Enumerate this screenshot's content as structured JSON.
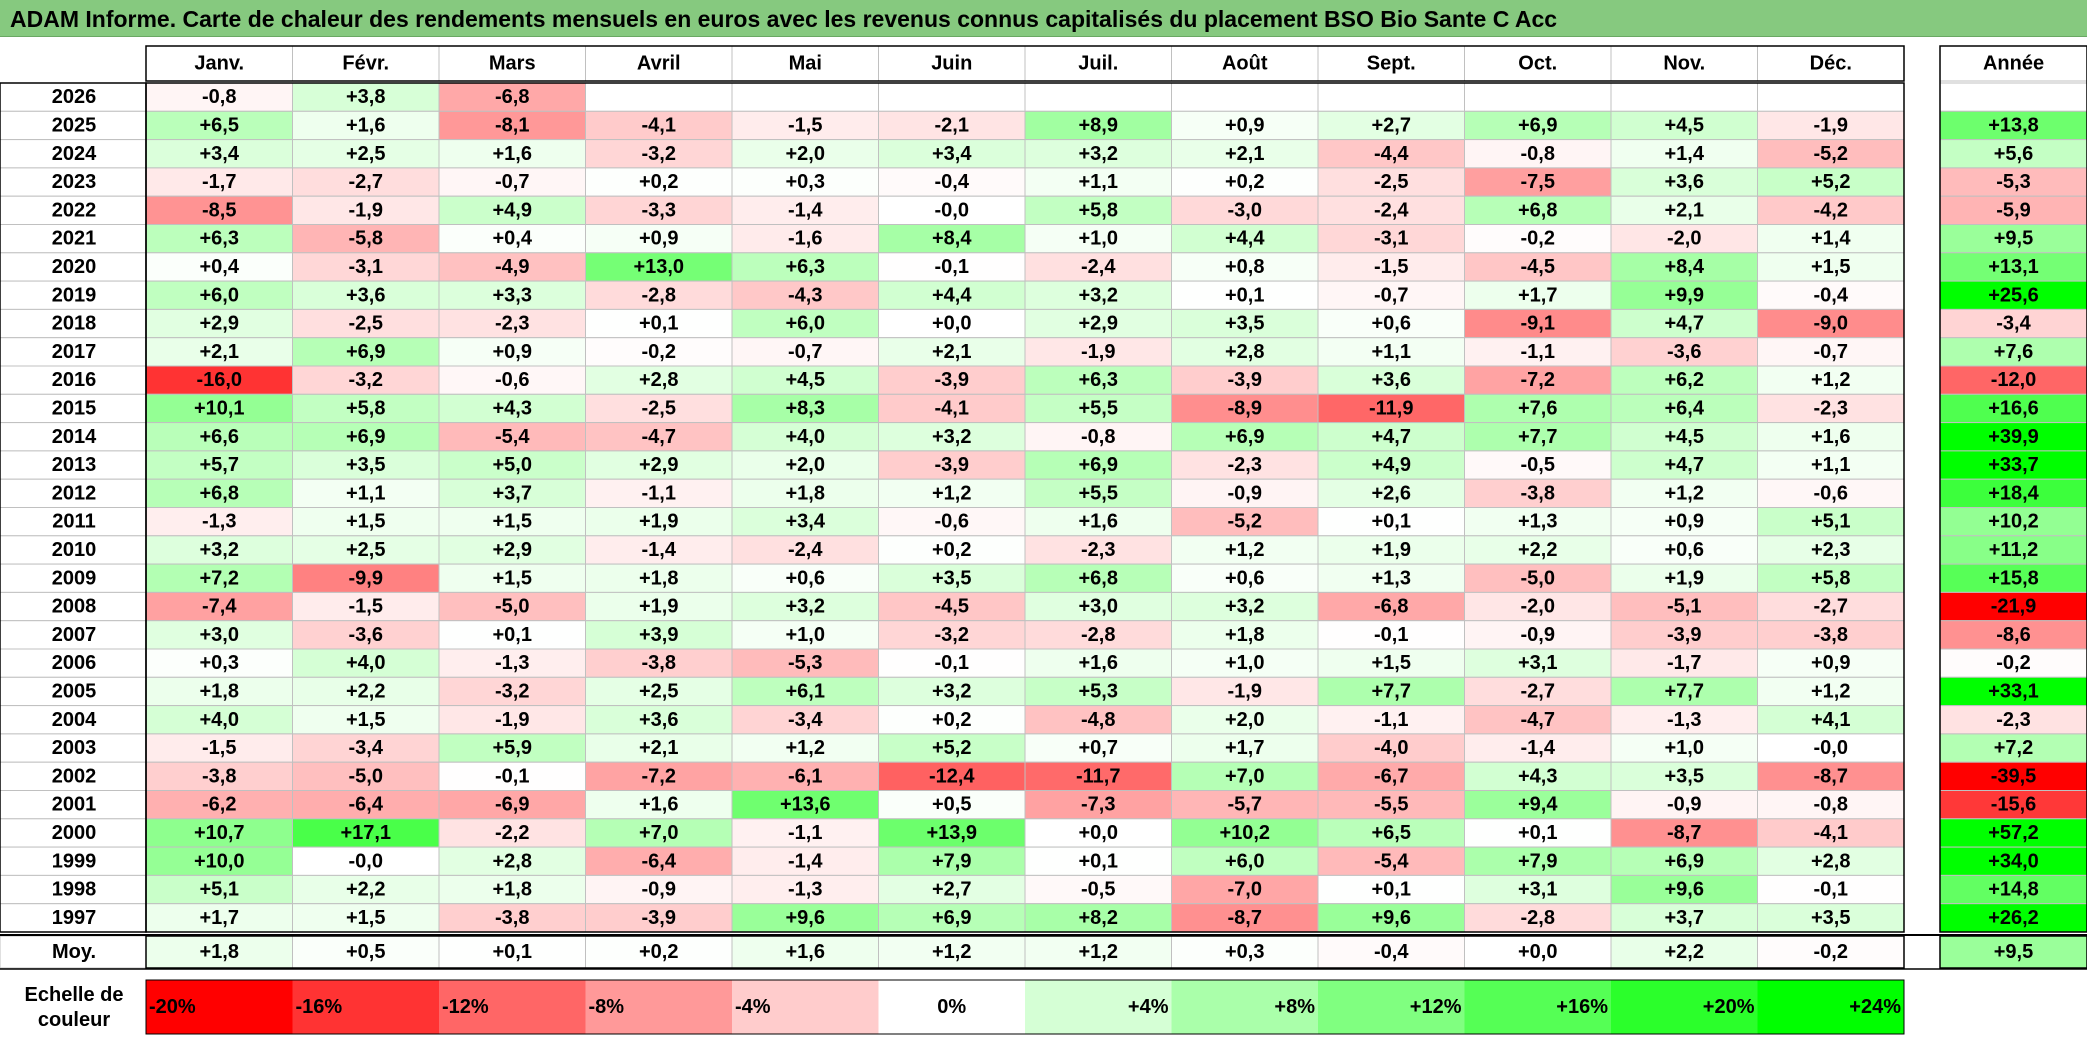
{
  "title": "ADAM Informe. Carte de chaleur des rendements mensuels en euros avec les revenus connus capitalisés du placement BSO Bio Sante C Acc",
  "chart_data": {
    "type": "heatmap",
    "title": "ADAM Informe. Carte de chaleur des rendements mensuels en euros avec les revenus connus capitalisés du placement BSO Bio Sante C Acc",
    "months": [
      "Janv.",
      "Févr.",
      "Mars",
      "Avril",
      "Mai",
      "Juin",
      "Juil.",
      "Août",
      "Sept.",
      "Oct.",
      "Nov.",
      "Déc."
    ],
    "year_header": "Année",
    "rows": [
      {
        "year": "2026",
        "values": [
          "-0,8",
          "+3,8",
          "-6,8",
          "",
          "",
          "",
          "",
          "",
          "",
          "",
          "",
          ""
        ],
        "annual": ""
      },
      {
        "year": "2025",
        "values": [
          "+6,5",
          "+1,6",
          "-8,1",
          "-4,1",
          "-1,5",
          "-2,1",
          "+8,9",
          "+0,9",
          "+2,7",
          "+6,9",
          "+4,5",
          "-1,9"
        ],
        "annual": "+13,8"
      },
      {
        "year": "2024",
        "values": [
          "+3,4",
          "+2,5",
          "+1,6",
          "-3,2",
          "+2,0",
          "+3,4",
          "+3,2",
          "+2,1",
          "-4,4",
          "-0,8",
          "+1,4",
          "-5,2"
        ],
        "annual": "+5,6"
      },
      {
        "year": "2023",
        "values": [
          "-1,7",
          "-2,7",
          "-0,7",
          "+0,2",
          "+0,3",
          "-0,4",
          "+1,1",
          "+0,2",
          "-2,5",
          "-7,5",
          "+3,6",
          "+5,2"
        ],
        "annual": "-5,3"
      },
      {
        "year": "2022",
        "values": [
          "-8,5",
          "-1,9",
          "+4,9",
          "-3,3",
          "-1,4",
          "-0,0",
          "+5,8",
          "-3,0",
          "-2,4",
          "+6,8",
          "+2,1",
          "-4,2"
        ],
        "annual": "-5,9"
      },
      {
        "year": "2021",
        "values": [
          "+6,3",
          "-5,8",
          "+0,4",
          "+0,9",
          "-1,6",
          "+8,4",
          "+1,0",
          "+4,4",
          "-3,1",
          "-0,2",
          "-2,0",
          "+1,4"
        ],
        "annual": "+9,5"
      },
      {
        "year": "2020",
        "values": [
          "+0,4",
          "-3,1",
          "-4,9",
          "+13,0",
          "+6,3",
          "-0,1",
          "-2,4",
          "+0,8",
          "-1,5",
          "-4,5",
          "+8,4",
          "+1,5"
        ],
        "annual": "+13,1"
      },
      {
        "year": "2019",
        "values": [
          "+6,0",
          "+3,6",
          "+3,3",
          "-2,8",
          "-4,3",
          "+4,4",
          "+3,2",
          "+0,1",
          "-0,7",
          "+1,7",
          "+9,9",
          "-0,4"
        ],
        "annual": "+25,6"
      },
      {
        "year": "2018",
        "values": [
          "+2,9",
          "-2,5",
          "-2,3",
          "+0,1",
          "+6,0",
          "+0,0",
          "+2,9",
          "+3,5",
          "+0,6",
          "-9,1",
          "+4,7",
          "-9,0"
        ],
        "annual": "-3,4"
      },
      {
        "year": "2017",
        "values": [
          "+2,1",
          "+6,9",
          "+0,9",
          "-0,2",
          "-0,7",
          "+2,1",
          "-1,9",
          "+2,8",
          "+1,1",
          "-1,1",
          "-3,6",
          "-0,7"
        ],
        "annual": "+7,6"
      },
      {
        "year": "2016",
        "values": [
          "-16,0",
          "-3,2",
          "-0,6",
          "+2,8",
          "+4,5",
          "-3,9",
          "+6,3",
          "-3,9",
          "+3,6",
          "-7,2",
          "+6,2",
          "+1,2"
        ],
        "annual": "-12,0"
      },
      {
        "year": "2015",
        "values": [
          "+10,1",
          "+5,8",
          "+4,3",
          "-2,5",
          "+8,3",
          "-4,1",
          "+5,5",
          "-8,9",
          "-11,9",
          "+7,6",
          "+6,4",
          "-2,3"
        ],
        "annual": "+16,6"
      },
      {
        "year": "2014",
        "values": [
          "+6,6",
          "+6,9",
          "-5,4",
          "-4,7",
          "+4,0",
          "+3,2",
          "-0,8",
          "+6,9",
          "+4,7",
          "+7,7",
          "+4,5",
          "+1,6"
        ],
        "annual": "+39,9"
      },
      {
        "year": "2013",
        "values": [
          "+5,7",
          "+3,5",
          "+5,0",
          "+2,9",
          "+2,0",
          "-3,9",
          "+6,9",
          "-2,3",
          "+4,9",
          "-0,5",
          "+4,7",
          "+1,1"
        ],
        "annual": "+33,7"
      },
      {
        "year": "2012",
        "values": [
          "+6,8",
          "+1,1",
          "+3,7",
          "-1,1",
          "+1,8",
          "+1,2",
          "+5,5",
          "-0,9",
          "+2,6",
          "-3,8",
          "+1,2",
          "-0,6"
        ],
        "annual": "+18,4"
      },
      {
        "year": "2011",
        "values": [
          "-1,3",
          "+1,5",
          "+1,5",
          "+1,9",
          "+3,4",
          "-0,6",
          "+1,6",
          "-5,2",
          "+0,1",
          "+1,3",
          "+0,9",
          "+5,1"
        ],
        "annual": "+10,2"
      },
      {
        "year": "2010",
        "values": [
          "+3,2",
          "+2,5",
          "+2,9",
          "-1,4",
          "-2,4",
          "+0,2",
          "-2,3",
          "+1,2",
          "+1,9",
          "+2,2",
          "+0,6",
          "+2,3"
        ],
        "annual": "+11,2"
      },
      {
        "year": "2009",
        "values": [
          "+7,2",
          "-9,9",
          "+1,5",
          "+1,8",
          "+0,6",
          "+3,5",
          "+6,8",
          "+0,6",
          "+1,3",
          "-5,0",
          "+1,9",
          "+5,8"
        ],
        "annual": "+15,8"
      },
      {
        "year": "2008",
        "values": [
          "-7,4",
          "-1,5",
          "-5,0",
          "+1,9",
          "+3,2",
          "-4,5",
          "+3,0",
          "+3,2",
          "-6,8",
          "-2,0",
          "-5,1",
          "-2,7"
        ],
        "annual": "-21,9"
      },
      {
        "year": "2007",
        "values": [
          "+3,0",
          "-3,6",
          "+0,1",
          "+3,9",
          "+1,0",
          "-3,2",
          "-2,8",
          "+1,8",
          "-0,1",
          "-0,9",
          "-3,9",
          "-3,8"
        ],
        "annual": "-8,6"
      },
      {
        "year": "2006",
        "values": [
          "+0,3",
          "+4,0",
          "-1,3",
          "-3,8",
          "-5,3",
          "-0,1",
          "+1,6",
          "+1,0",
          "+1,5",
          "+3,1",
          "-1,7",
          "+0,9"
        ],
        "annual": "-0,2"
      },
      {
        "year": "2005",
        "values": [
          "+1,8",
          "+2,2",
          "-3,2",
          "+2,5",
          "+6,1",
          "+3,2",
          "+5,3",
          "-1,9",
          "+7,7",
          "-2,7",
          "+7,7",
          "+1,2"
        ],
        "annual": "+33,1"
      },
      {
        "year": "2004",
        "values": [
          "+4,0",
          "+1,5",
          "-1,9",
          "+3,6",
          "-3,4",
          "+0,2",
          "-4,8",
          "+2,0",
          "-1,1",
          "-4,7",
          "-1,3",
          "+4,1"
        ],
        "annual": "-2,3"
      },
      {
        "year": "2003",
        "values": [
          "-1,5",
          "-3,4",
          "+5,9",
          "+2,1",
          "+1,2",
          "+5,2",
          "+0,7",
          "+1,7",
          "-4,0",
          "-1,4",
          "+1,0",
          "-0,0"
        ],
        "annual": "+7,2"
      },
      {
        "year": "2002",
        "values": [
          "-3,8",
          "-5,0",
          "-0,1",
          "-7,2",
          "-6,1",
          "-12,4",
          "-11,7",
          "+7,0",
          "-6,7",
          "+4,3",
          "+3,5",
          "-8,7"
        ],
        "annual": "-39,5"
      },
      {
        "year": "2001",
        "values": [
          "-6,2",
          "-6,4",
          "-6,9",
          "+1,6",
          "+13,6",
          "+0,5",
          "-7,3",
          "-5,7",
          "-5,5",
          "+9,4",
          "-0,9",
          "-0,8"
        ],
        "annual": "-15,6"
      },
      {
        "year": "2000",
        "values": [
          "+10,7",
          "+17,1",
          "-2,2",
          "+7,0",
          "-1,1",
          "+13,9",
          "+0,0",
          "+10,2",
          "+6,5",
          "+0,1",
          "-8,7",
          "-4,1"
        ],
        "annual": "+57,2"
      },
      {
        "year": "1999",
        "values": [
          "+10,0",
          "-0,0",
          "+2,8",
          "-6,4",
          "-1,4",
          "+7,9",
          "+0,1",
          "+6,0",
          "-5,4",
          "+7,9",
          "+6,9",
          "+2,8"
        ],
        "annual": "+34,0"
      },
      {
        "year": "1998",
        "values": [
          "+5,1",
          "+2,2",
          "+1,8",
          "-0,9",
          "-1,3",
          "+2,7",
          "-0,5",
          "-7,0",
          "+0,1",
          "+3,1",
          "+9,6",
          "-0,1"
        ],
        "annual": "+14,8"
      },
      {
        "year": "1997",
        "values": [
          "+1,7",
          "+1,5",
          "-3,8",
          "-3,9",
          "+9,6",
          "+6,9",
          "+8,2",
          "-8,7",
          "+9,6",
          "-2,8",
          "+3,7",
          "+3,5"
        ],
        "annual": "+26,2"
      }
    ],
    "average": {
      "label": "Moy.",
      "values": [
        "+1,8",
        "+0,5",
        "+0,1",
        "+0,2",
        "+1,6",
        "+1,2",
        "+1,2",
        "+0,3",
        "-0,4",
        "+0,0",
        "+2,2",
        "-0,2"
      ],
      "annual": "+9,5"
    },
    "color_scale": {
      "label_line1": "Echelle de",
      "label_line2": "couleur",
      "stops": [
        {
          "label": "-20%",
          "value": -20,
          "color": "#ff0000"
        },
        {
          "label": "-16%",
          "value": -16,
          "color": "#ff3333"
        },
        {
          "label": "-12%",
          "value": -12,
          "color": "#ff6666"
        },
        {
          "label": "-8%",
          "value": -8,
          "color": "#ff9999"
        },
        {
          "label": "-4%",
          "value": -4,
          "color": "#ffcccc"
        },
        {
          "label": "0%",
          "value": 0,
          "color": "#ffffff"
        },
        {
          "label": "+4%",
          "value": 4,
          "color": "#d5ffd5"
        },
        {
          "label": "+8%",
          "value": 8,
          "color": "#aaffaa"
        },
        {
          "label": "+12%",
          "value": 12,
          "color": "#80ff80"
        },
        {
          "label": "+16%",
          "value": 16,
          "color": "#55ff55"
        },
        {
          "label": "+20%",
          "value": 20,
          "color": "#2bff2b"
        },
        {
          "label": "+24%",
          "value": 24,
          "color": "#00ff00"
        }
      ]
    },
    "colors": {
      "title_bar": "#86c97f",
      "grid": "#c0c0c0",
      "border": "#000000"
    }
  }
}
